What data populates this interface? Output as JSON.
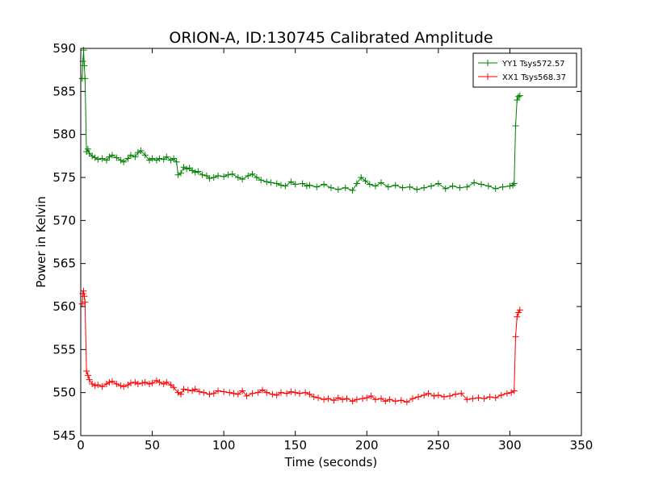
{
  "chart_data": {
    "type": "line",
    "title": "ORION-A, ID:130745 Calibrated Amplitude",
    "xlabel": "Time (seconds)",
    "ylabel": "Power in Kelvin",
    "xlim": [
      0,
      350
    ],
    "ylim": [
      545,
      590
    ],
    "xticks": [
      0,
      50,
      100,
      150,
      200,
      250,
      300,
      350
    ],
    "yticks": [
      545,
      550,
      555,
      560,
      565,
      570,
      575,
      580,
      585,
      590
    ],
    "grid": false,
    "legend_position": "top-right",
    "marker": "+",
    "series": [
      {
        "name": "YY1 Tsys572.57",
        "color": "#008000",
        "points": [
          [
            1,
            586.5
          ],
          [
            1.5,
            588.5
          ],
          [
            2,
            589.8
          ],
          [
            2.5,
            588
          ],
          [
            3,
            586.5
          ],
          [
            4,
            578
          ],
          [
            5,
            578.3
          ],
          [
            6,
            577.8
          ],
          [
            8,
            577.5
          ],
          [
            10,
            577.3
          ],
          [
            12,
            577.1
          ],
          [
            15,
            577.2
          ],
          [
            18,
            577.0
          ],
          [
            20,
            577.4
          ],
          [
            22,
            577.6
          ],
          [
            25,
            577.3
          ],
          [
            28,
            577.0
          ],
          [
            30,
            576.8
          ],
          [
            33,
            577.2
          ],
          [
            35,
            577.6
          ],
          [
            38,
            577.4
          ],
          [
            40,
            577.9
          ],
          [
            42,
            578.1
          ],
          [
            45,
            577.6
          ],
          [
            48,
            577.0
          ],
          [
            50,
            577.2
          ],
          [
            53,
            577.0
          ],
          [
            55,
            577.2
          ],
          [
            58,
            577.1
          ],
          [
            60,
            577.4
          ],
          [
            63,
            577.0
          ],
          [
            65,
            577.2
          ],
          [
            67,
            576.8
          ],
          [
            68,
            575.3
          ],
          [
            70,
            575.5
          ],
          [
            72,
            576.2
          ],
          [
            74,
            576.0
          ],
          [
            76,
            576.1
          ],
          [
            78,
            575.8
          ],
          [
            80,
            575.6
          ],
          [
            82,
            575.7
          ],
          [
            85,
            575.3
          ],
          [
            88,
            575.2
          ],
          [
            90,
            574.9
          ],
          [
            93,
            575.0
          ],
          [
            96,
            575.2
          ],
          [
            100,
            575.1
          ],
          [
            103,
            575.3
          ],
          [
            106,
            575.4
          ],
          [
            110,
            575.0
          ],
          [
            113,
            574.8
          ],
          [
            117,
            575.2
          ],
          [
            120,
            575.4
          ],
          [
            123,
            575.0
          ],
          [
            126,
            574.7
          ],
          [
            130,
            574.5
          ],
          [
            133,
            574.4
          ],
          [
            137,
            574.3
          ],
          [
            140,
            574.1
          ],
          [
            143,
            574.0
          ],
          [
            147,
            574.5
          ],
          [
            150,
            574.2
          ],
          [
            155,
            574.3
          ],
          [
            158,
            574.0
          ],
          [
            160,
            574.1
          ],
          [
            165,
            573.9
          ],
          [
            170,
            574.2
          ],
          [
            175,
            573.8
          ],
          [
            180,
            573.6
          ],
          [
            185,
            573.8
          ],
          [
            190,
            573.5
          ],
          [
            193,
            574.3
          ],
          [
            196,
            575.0
          ],
          [
            199,
            574.6
          ],
          [
            202,
            574.2
          ],
          [
            206,
            574.0
          ],
          [
            210,
            574.4
          ],
          [
            215,
            573.9
          ],
          [
            220,
            574.1
          ],
          [
            225,
            573.8
          ],
          [
            230,
            573.9
          ],
          [
            235,
            573.6
          ],
          [
            240,
            573.8
          ],
          [
            245,
            574.0
          ],
          [
            250,
            574.3
          ],
          [
            255,
            573.7
          ],
          [
            260,
            574.0
          ],
          [
            265,
            573.8
          ],
          [
            270,
            573.9
          ],
          [
            275,
            574.4
          ],
          [
            280,
            574.2
          ],
          [
            285,
            574.0
          ],
          [
            290,
            573.7
          ],
          [
            295,
            573.9
          ],
          [
            300,
            574.0
          ],
          [
            302,
            574.1
          ],
          [
            303,
            574.3
          ],
          [
            304,
            581.0
          ],
          [
            305,
            584.0
          ],
          [
            306,
            584.4
          ],
          [
            307,
            584.5
          ]
        ]
      },
      {
        "name": "XX1 Tsys568.37",
        "color": "#ff0000",
        "points": [
          [
            1,
            560.3
          ],
          [
            1.5,
            561.5
          ],
          [
            2,
            561.8
          ],
          [
            2.5,
            561.2
          ],
          [
            3,
            560.5
          ],
          [
            4,
            552.5
          ],
          [
            5,
            552.0
          ],
          [
            6,
            551.5
          ],
          [
            8,
            551.0
          ],
          [
            10,
            550.8
          ],
          [
            12,
            550.9
          ],
          [
            15,
            550.7
          ],
          [
            18,
            551.0
          ],
          [
            20,
            551.2
          ],
          [
            22,
            551.3
          ],
          [
            25,
            551.0
          ],
          [
            28,
            550.8
          ],
          [
            30,
            550.7
          ],
          [
            33,
            550.9
          ],
          [
            35,
            551.1
          ],
          [
            38,
            551.2
          ],
          [
            40,
            551.0
          ],
          [
            43,
            551.1
          ],
          [
            45,
            551.2
          ],
          [
            48,
            551.0
          ],
          [
            50,
            551.1
          ],
          [
            53,
            551.4
          ],
          [
            55,
            551.2
          ],
          [
            58,
            551.0
          ],
          [
            60,
            551.2
          ],
          [
            63,
            550.9
          ],
          [
            65,
            550.6
          ],
          [
            68,
            550.0
          ],
          [
            70,
            549.8
          ],
          [
            72,
            550.4
          ],
          [
            75,
            550.3
          ],
          [
            78,
            550.2
          ],
          [
            80,
            550.4
          ],
          [
            83,
            550.1
          ],
          [
            86,
            550.0
          ],
          [
            90,
            549.8
          ],
          [
            93,
            549.9
          ],
          [
            96,
            550.2
          ],
          [
            100,
            550.1
          ],
          [
            104,
            550.0
          ],
          [
            107,
            549.9
          ],
          [
            110,
            549.8
          ],
          [
            113,
            550.2
          ],
          [
            116,
            549.6
          ],
          [
            120,
            549.9
          ],
          [
            124,
            550.0
          ],
          [
            127,
            550.3
          ],
          [
            130,
            550.0
          ],
          [
            134,
            549.8
          ],
          [
            137,
            549.7
          ],
          [
            140,
            550.0
          ],
          [
            144,
            549.9
          ],
          [
            147,
            550.1
          ],
          [
            150,
            550.0
          ],
          [
            153,
            549.9
          ],
          [
            157,
            550.0
          ],
          [
            160,
            549.8
          ],
          [
            163,
            549.5
          ],
          [
            166,
            549.4
          ],
          [
            170,
            549.2
          ],
          [
            173,
            549.3
          ],
          [
            177,
            549.1
          ],
          [
            180,
            549.4
          ],
          [
            183,
            549.2
          ],
          [
            186,
            549.3
          ],
          [
            190,
            549.0
          ],
          [
            193,
            549.2
          ],
          [
            197,
            549.3
          ],
          [
            200,
            549.4
          ],
          [
            203,
            549.6
          ],
          [
            206,
            549.2
          ],
          [
            210,
            549.3
          ],
          [
            213,
            549.0
          ],
          [
            216,
            549.2
          ],
          [
            220,
            549.0
          ],
          [
            224,
            549.1
          ],
          [
            228,
            548.9
          ],
          [
            232,
            549.3
          ],
          [
            236,
            549.5
          ],
          [
            240,
            549.7
          ],
          [
            243,
            549.9
          ],
          [
            247,
            549.6
          ],
          [
            250,
            549.7
          ],
          [
            254,
            549.5
          ],
          [
            258,
            549.6
          ],
          [
            262,
            549.8
          ],
          [
            266,
            549.9
          ],
          [
            270,
            549.2
          ],
          [
            274,
            549.3
          ],
          [
            278,
            549.4
          ],
          [
            282,
            549.3
          ],
          [
            286,
            549.5
          ],
          [
            290,
            549.4
          ],
          [
            294,
            549.7
          ],
          [
            298,
            549.9
          ],
          [
            301,
            550.0
          ],
          [
            303,
            550.2
          ],
          [
            304,
            556.5
          ],
          [
            305,
            558.8
          ],
          [
            306,
            559.3
          ],
          [
            307,
            559.6
          ]
        ]
      }
    ]
  }
}
